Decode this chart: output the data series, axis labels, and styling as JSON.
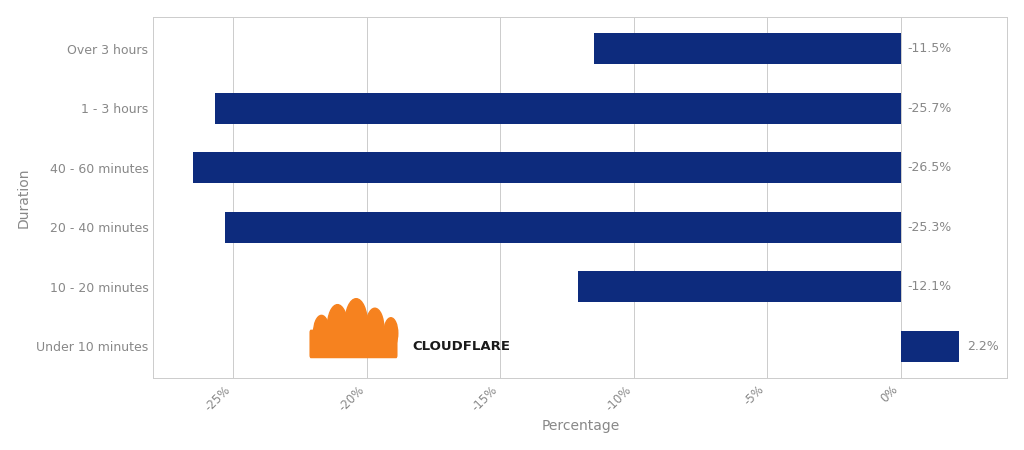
{
  "categories": [
    "Over 3 hours",
    "1 - 3 hours",
    "40 - 60 minutes",
    "20 - 40 minutes",
    "10 - 20 minutes",
    "Under 10 minutes"
  ],
  "values": [
    -11.5,
    -25.7,
    -26.5,
    -25.3,
    -12.1,
    2.2
  ],
  "labels": [
    "-11.5%",
    "-25.7%",
    "-26.5%",
    "-25.3%",
    "-12.1%",
    "2.2%"
  ],
  "bar_color": "#0d2b7d",
  "background_color": "#ffffff",
  "xlabel": "Percentage",
  "ylabel": "Duration",
  "xlim": [
    -28,
    4
  ],
  "xticks": [
    -25,
    -20,
    -15,
    -10,
    -5,
    0
  ],
  "xtick_labels": [
    "-25%",
    "-20%",
    "-15%",
    "-10%",
    "-5%",
    "0%"
  ],
  "label_fontsize": 9,
  "tick_fontsize": 8.5,
  "bar_height": 0.52,
  "grid_color": "#cccccc",
  "spine_color": "#cccccc",
  "text_color": "#888888",
  "label_color": "#888888",
  "cloudflare_text_color": "#1a1a1a",
  "cloud_color": "#f6821f"
}
